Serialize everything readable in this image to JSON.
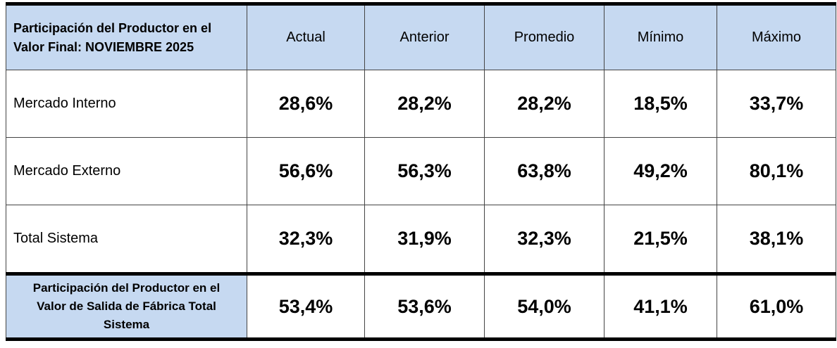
{
  "table": {
    "header": {
      "title_lines": [
        "Participación del Productor en el",
        "Valor Final:  NOVIEMBRE  2025"
      ],
      "columns": [
        "Actual",
        "Anterior",
        "Promedio",
        "Mínimo",
        "Máximo"
      ]
    },
    "rows": [
      {
        "label_lines": [
          "Mercado Interno"
        ],
        "values": [
          "28,6%",
          "28,2%",
          "28,2%",
          "18,5%",
          "33,7%"
        ]
      },
      {
        "label_lines": [
          "Mercado Externo"
        ],
        "values": [
          "56,6%",
          "56,3%",
          "63,8%",
          "49,2%",
          "80,1%"
        ]
      },
      {
        "label_lines": [
          "Total Sistema"
        ],
        "values": [
          "32,3%",
          "31,9%",
          "32,3%",
          "21,5%",
          "38,1%"
        ]
      },
      {
        "label_lines": [
          "Participación del Productor en el",
          "Valor de Salida de Fábrica Total",
          "Sistema"
        ],
        "values": [
          "53,4%",
          "53,6%",
          "54,0%",
          "41,1%",
          "61,0%"
        ]
      }
    ]
  }
}
